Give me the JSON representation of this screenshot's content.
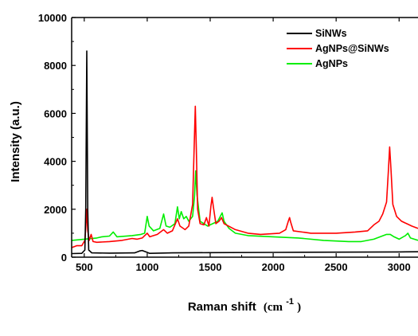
{
  "chart_data": {
    "type": "line",
    "xlabel": "Raman shift",
    "xlabel_unit": "(cm",
    "xlabel_unit_sup": "-1",
    "xlabel_unit_close": ")",
    "ylabel": "Intensity (a.u.)",
    "xlim": [
      400,
      3150
    ],
    "ylim": [
      0,
      10000
    ],
    "x_ticks": [
      500,
      1000,
      1500,
      2000,
      2500,
      3000
    ],
    "y_ticks": [
      0,
      2000,
      4000,
      6000,
      8000,
      10000
    ],
    "legend_position": "top-right",
    "series": [
      {
        "name": "SiNWs",
        "color": "#000000",
        "points": [
          [
            400,
            150
          ],
          [
            480,
            160
          ],
          [
            505,
            300
          ],
          [
            512,
            2000
          ],
          [
            520,
            8600
          ],
          [
            528,
            2000
          ],
          [
            535,
            300
          ],
          [
            560,
            180
          ],
          [
            700,
            170
          ],
          [
            900,
            180
          ],
          [
            940,
            260
          ],
          [
            960,
            280
          ],
          [
            990,
            220
          ],
          [
            1020,
            160
          ],
          [
            1200,
            180
          ],
          [
            1500,
            190
          ],
          [
            2000,
            200
          ],
          [
            2500,
            210
          ],
          [
            3000,
            220
          ],
          [
            3150,
            225
          ]
        ]
      },
      {
        "name": "AgNPs@SiNWs",
        "color": "#ff0000",
        "points": [
          [
            400,
            400
          ],
          [
            440,
            480
          ],
          [
            480,
            480
          ],
          [
            505,
            700
          ],
          [
            512,
            1200
          ],
          [
            520,
            2000
          ],
          [
            528,
            1100
          ],
          [
            540,
            700
          ],
          [
            555,
            950
          ],
          [
            570,
            650
          ],
          [
            600,
            620
          ],
          [
            700,
            650
          ],
          [
            800,
            700
          ],
          [
            880,
            780
          ],
          [
            920,
            750
          ],
          [
            960,
            800
          ],
          [
            1000,
            1000
          ],
          [
            1020,
            850
          ],
          [
            1080,
            950
          ],
          [
            1130,
            1150
          ],
          [
            1160,
            1000
          ],
          [
            1200,
            1100
          ],
          [
            1240,
            1600
          ],
          [
            1260,
            1300
          ],
          [
            1300,
            1150
          ],
          [
            1330,
            1300
          ],
          [
            1360,
            2200
          ],
          [
            1375,
            5000
          ],
          [
            1382,
            6300
          ],
          [
            1390,
            4500
          ],
          [
            1400,
            2000
          ],
          [
            1420,
            1400
          ],
          [
            1450,
            1350
          ],
          [
            1470,
            1650
          ],
          [
            1490,
            1300
          ],
          [
            1505,
            2100
          ],
          [
            1515,
            2500
          ],
          [
            1525,
            2100
          ],
          [
            1545,
            1400
          ],
          [
            1570,
            1500
          ],
          [
            1590,
            1650
          ],
          [
            1610,
            1400
          ],
          [
            1700,
            1150
          ],
          [
            1800,
            1000
          ],
          [
            1900,
            950
          ],
          [
            2050,
            1000
          ],
          [
            2100,
            1150
          ],
          [
            2120,
            1500
          ],
          [
            2130,
            1650
          ],
          [
            2140,
            1450
          ],
          [
            2160,
            1100
          ],
          [
            2300,
            1000
          ],
          [
            2500,
            1000
          ],
          [
            2650,
            1050
          ],
          [
            2750,
            1100
          ],
          [
            2800,
            1350
          ],
          [
            2840,
            1500
          ],
          [
            2870,
            1800
          ],
          [
            2900,
            2300
          ],
          [
            2915,
            3600
          ],
          [
            2925,
            4600
          ],
          [
            2935,
            3700
          ],
          [
            2950,
            2200
          ],
          [
            2980,
            1700
          ],
          [
            3020,
            1500
          ],
          [
            3060,
            1400
          ],
          [
            3100,
            1300
          ],
          [
            3150,
            1200
          ]
        ]
      },
      {
        "name": "AgNPs",
        "color": "#00ee00",
        "points": [
          [
            400,
            700
          ],
          [
            500,
            750
          ],
          [
            600,
            800
          ],
          [
            640,
            850
          ],
          [
            700,
            880
          ],
          [
            730,
            1050
          ],
          [
            760,
            850
          ],
          [
            880,
            900
          ],
          [
            950,
            950
          ],
          [
            980,
            1000
          ],
          [
            1000,
            1700
          ],
          [
            1015,
            1300
          ],
          [
            1050,
            1100
          ],
          [
            1100,
            1200
          ],
          [
            1130,
            1800
          ],
          [
            1150,
            1300
          ],
          [
            1180,
            1250
          ],
          [
            1220,
            1400
          ],
          [
            1240,
            2100
          ],
          [
            1255,
            1600
          ],
          [
            1270,
            1900
          ],
          [
            1290,
            1600
          ],
          [
            1310,
            1700
          ],
          [
            1330,
            1500
          ],
          [
            1360,
            1700
          ],
          [
            1375,
            2500
          ],
          [
            1385,
            3600
          ],
          [
            1395,
            2600
          ],
          [
            1420,
            1500
          ],
          [
            1450,
            1400
          ],
          [
            1480,
            1300
          ],
          [
            1520,
            1400
          ],
          [
            1560,
            1500
          ],
          [
            1580,
            1700
          ],
          [
            1595,
            1850
          ],
          [
            1610,
            1500
          ],
          [
            1650,
            1200
          ],
          [
            1700,
            1000
          ],
          [
            1800,
            900
          ],
          [
            2000,
            850
          ],
          [
            2200,
            800
          ],
          [
            2400,
            700
          ],
          [
            2600,
            650
          ],
          [
            2700,
            650
          ],
          [
            2800,
            750
          ],
          [
            2850,
            850
          ],
          [
            2900,
            950
          ],
          [
            2930,
            950
          ],
          [
            2960,
            850
          ],
          [
            3000,
            750
          ],
          [
            3050,
            900
          ],
          [
            3070,
            1000
          ],
          [
            3090,
            800
          ],
          [
            3150,
            700
          ]
        ]
      }
    ]
  }
}
